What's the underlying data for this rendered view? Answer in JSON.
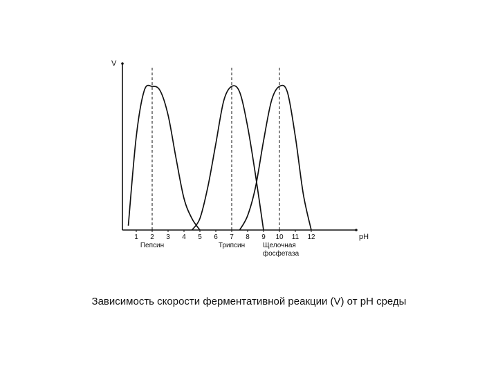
{
  "caption": "Зависимость скорости ферментативной реакции (V) от pH среды",
  "chart_data": {
    "type": "line",
    "ylabel": "V",
    "xlabel": "pH",
    "xlim": [
      0,
      13
    ],
    "ylim": [
      0,
      1
    ],
    "ticks": [
      1,
      2,
      3,
      4,
      5,
      6,
      7,
      8,
      9,
      10,
      11,
      12
    ],
    "grid": false,
    "series": [
      {
        "name": "Пепсин",
        "optimum": 2,
        "x": [
          0.5,
          1,
          1.5,
          2,
          2.5,
          3,
          3.5,
          4,
          4.5,
          5
        ],
        "y": [
          0.03,
          0.65,
          0.97,
          1.0,
          0.97,
          0.8,
          0.5,
          0.22,
          0.08,
          0.0
        ]
      },
      {
        "name": "Трипсин",
        "optimum": 7,
        "x": [
          4.5,
          5,
          5.5,
          6,
          6.5,
          7,
          7.5,
          8,
          8.5,
          9
        ],
        "y": [
          0.0,
          0.08,
          0.3,
          0.6,
          0.9,
          1.0,
          0.96,
          0.72,
          0.38,
          0.0
        ]
      },
      {
        "name": "Щелочная фосфетаза",
        "optimum": 10,
        "x": [
          7.5,
          8,
          8.5,
          9,
          9.5,
          10,
          10.5,
          11,
          11.5,
          12
        ],
        "y": [
          0.0,
          0.1,
          0.3,
          0.62,
          0.9,
          1.0,
          0.96,
          0.65,
          0.25,
          0.0
        ]
      }
    ],
    "colors": {
      "line": "#111111",
      "axis": "#111111"
    }
  }
}
